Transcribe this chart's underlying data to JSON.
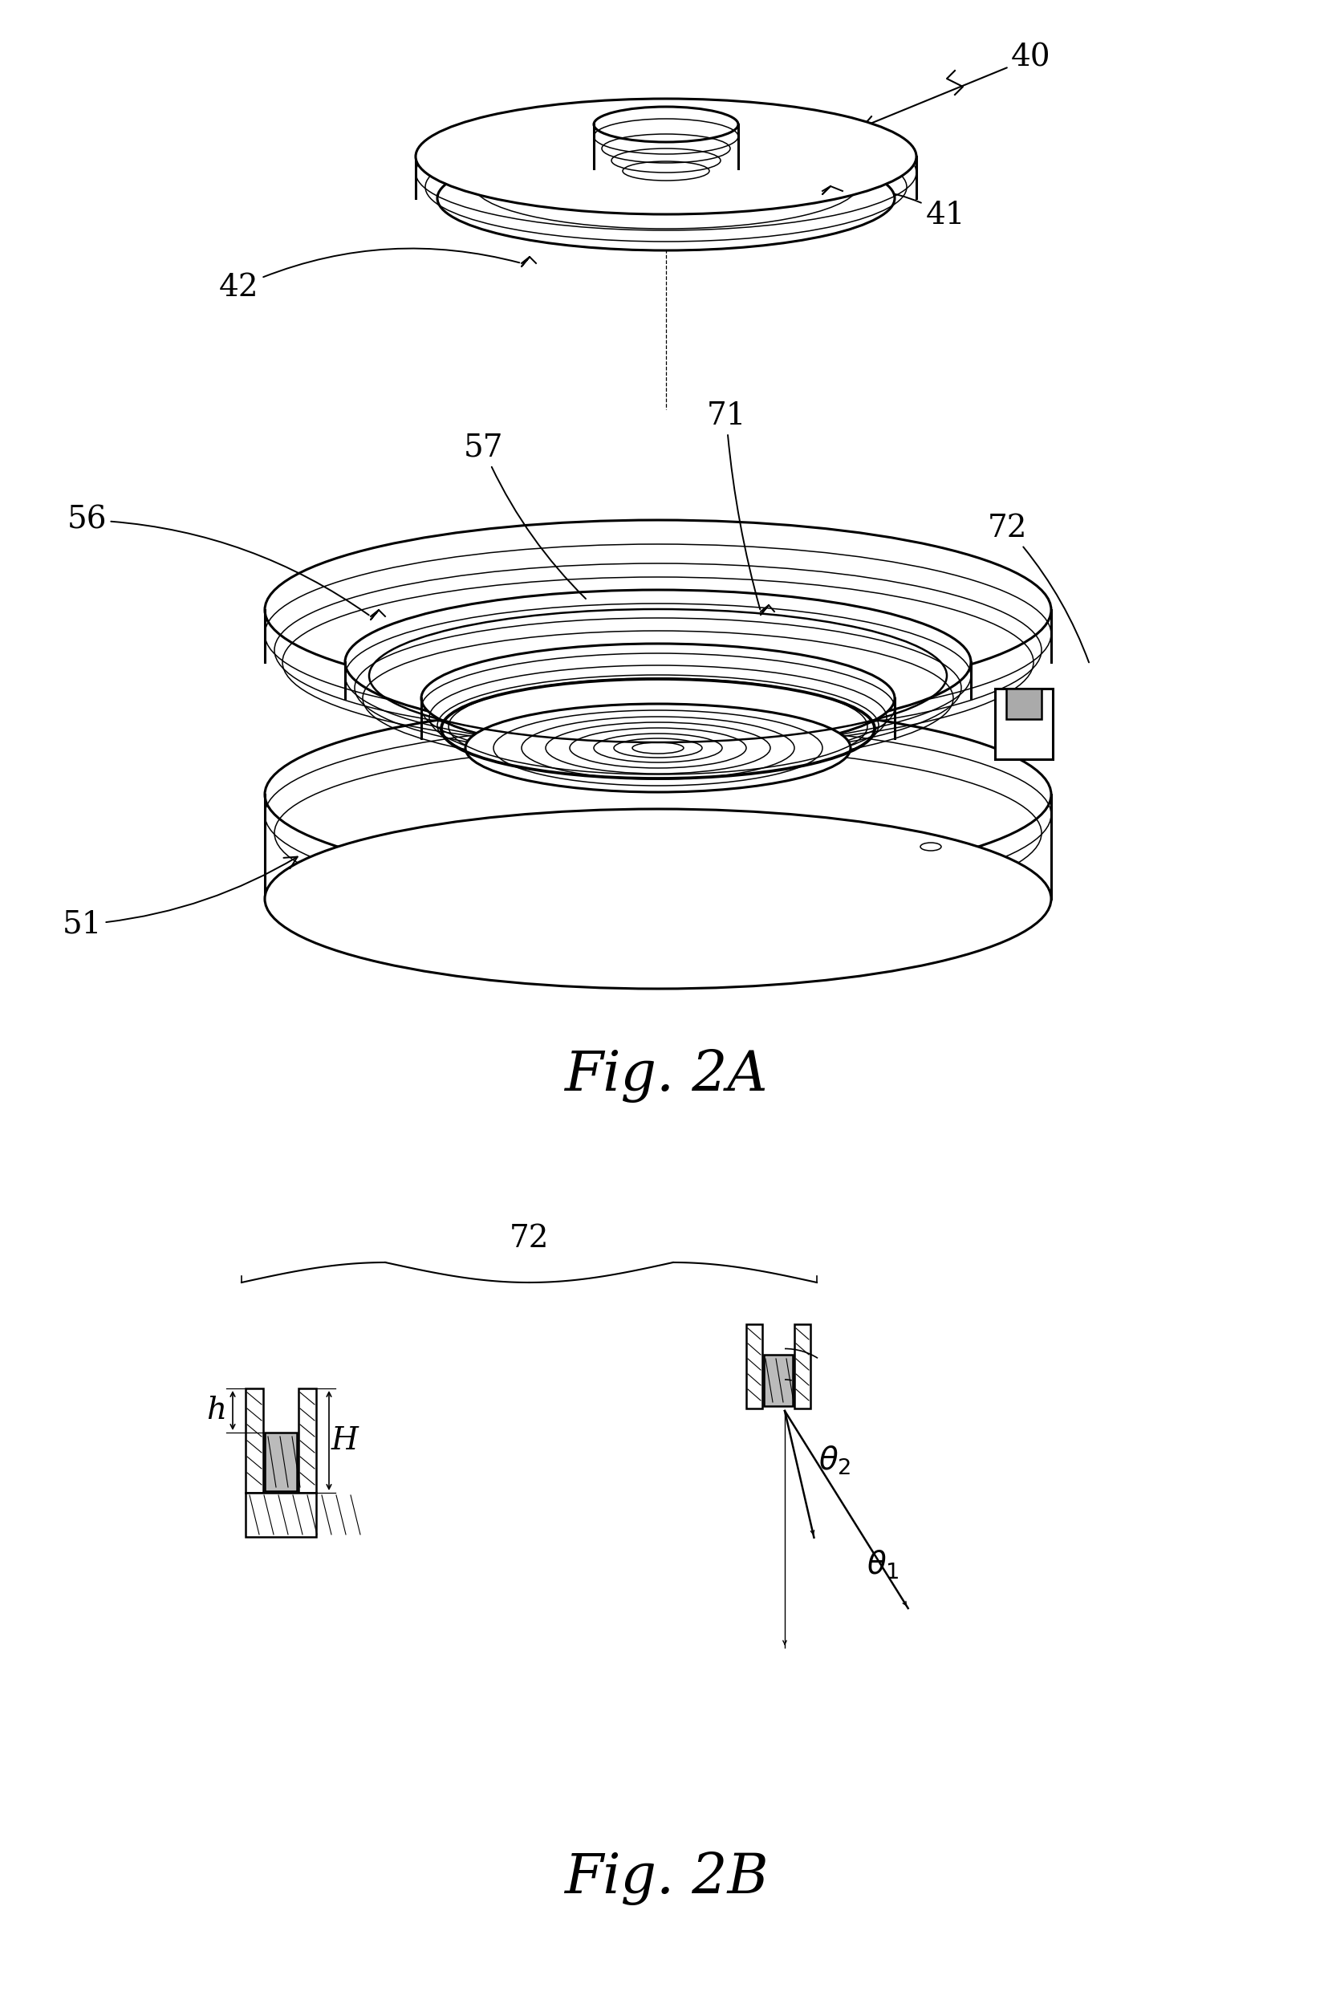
{
  "fig_title_2a": "Fig. 2A",
  "fig_title_2b": "Fig. 2B",
  "bg_color": "#ffffff",
  "line_color": "#000000",
  "label_40": "40",
  "label_41": "41",
  "label_42": "42",
  "label_51": "51",
  "label_56": "56",
  "label_57": "57",
  "label_71": "71",
  "label_72": "72",
  "label_h": "h",
  "label_H": "H",
  "font_size_label": 28,
  "font_size_title": 50,
  "lw_main": 1.8,
  "lw_thin": 1.1,
  "lw_thick": 2.2
}
